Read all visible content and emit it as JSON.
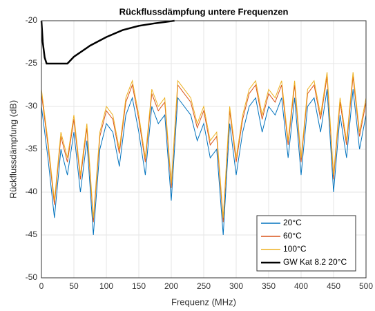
{
  "chart_data": {
    "type": "line",
    "title": "Rückflussdämpfung untere Frequenzen",
    "xlabel": "Frequenz (MHz)",
    "ylabel": "Rückflussdämpfung (dB)",
    "xlim": [
      0,
      500
    ],
    "xticks": [
      0,
      50,
      100,
      150,
      200,
      250,
      300,
      350,
      400,
      450,
      500
    ],
    "ylim": [
      -50,
      -20
    ],
    "yticks": [
      -20,
      -25,
      -30,
      -35,
      -40,
      -45,
      -50
    ],
    "grid": true,
    "legend": "lower right",
    "series": [
      {
        "name": "20°C",
        "color": "#0072BD",
        "x": [
          0,
          10,
          20,
          30,
          40,
          50,
          60,
          70,
          80,
          90,
          100,
          110,
          120,
          130,
          140,
          150,
          160,
          170,
          180,
          190,
          200,
          210,
          220,
          230,
          240,
          250,
          260,
          270,
          280,
          290,
          300,
          310,
          320,
          330,
          340,
          350,
          360,
          370,
          380,
          390,
          400,
          410,
          420,
          430,
          440,
          450,
          460,
          470,
          480,
          490,
          500
        ],
        "values": [
          -30,
          -36,
          -43,
          -35,
          -38,
          -33,
          -40,
          -34,
          -45,
          -35,
          -32,
          -33,
          -37,
          -31,
          -29,
          -33,
          -38,
          -30,
          -32,
          -31,
          -41,
          -29,
          -30,
          -31,
          -34,
          -32,
          -36,
          -35,
          -45,
          -32,
          -38,
          -33,
          -30,
          -29,
          -33,
          -30,
          -31,
          -29,
          -36,
          -29,
          -38,
          -30,
          -29,
          -33,
          -28,
          -40,
          -31,
          -36,
          -28,
          -35,
          -31
        ]
      },
      {
        "name": "60°C",
        "color": "#D95319",
        "x": [
          0,
          10,
          20,
          30,
          40,
          50,
          60,
          70,
          80,
          90,
          100,
          110,
          120,
          130,
          140,
          150,
          160,
          170,
          180,
          190,
          200,
          210,
          220,
          230,
          240,
          250,
          260,
          270,
          280,
          290,
          300,
          310,
          320,
          330,
          340,
          350,
          360,
          370,
          380,
          390,
          400,
          410,
          420,
          430,
          440,
          450,
          460,
          470,
          480,
          490,
          500
        ],
        "values": [
          -28.5,
          -34.5,
          -41.5,
          -33.5,
          -36.5,
          -31.5,
          -38.5,
          -32.5,
          -43.5,
          -33.5,
          -30.5,
          -31.5,
          -35.5,
          -29.5,
          -27.5,
          -31.5,
          -36.5,
          -28.5,
          -30.5,
          -29.5,
          -39.5,
          -27.5,
          -28.5,
          -29.5,
          -32.5,
          -30.5,
          -34.5,
          -33.5,
          -43.5,
          -30.5,
          -36.5,
          -31.5,
          -28.5,
          -27.5,
          -31.5,
          -28.5,
          -29.5,
          -27.5,
          -34.5,
          -27.5,
          -36.5,
          -28.5,
          -27.5,
          -31.5,
          -26.5,
          -38.5,
          -29.5,
          -34.5,
          -26.5,
          -33.5,
          -29.5
        ]
      },
      {
        "name": "100°C",
        "color": "#EDB120",
        "x": [
          0,
          10,
          20,
          30,
          40,
          50,
          60,
          70,
          80,
          90,
          100,
          110,
          120,
          130,
          140,
          150,
          160,
          170,
          180,
          190,
          200,
          210,
          220,
          230,
          240,
          250,
          260,
          270,
          280,
          290,
          300,
          310,
          320,
          330,
          340,
          350,
          360,
          370,
          380,
          390,
          400,
          410,
          420,
          430,
          440,
          450,
          460,
          470,
          480,
          490,
          500
        ],
        "values": [
          -28,
          -34,
          -41,
          -33,
          -36,
          -31,
          -38,
          -32,
          -43,
          -33,
          -30,
          -31,
          -35,
          -29,
          -27,
          -31,
          -36,
          -28,
          -30,
          -29,
          -39,
          -27,
          -28,
          -29,
          -32,
          -30,
          -34,
          -33,
          -43,
          -30,
          -36,
          -31,
          -28,
          -27,
          -31,
          -28,
          -29,
          -27,
          -34,
          -27,
          -36,
          -28,
          -27,
          -31,
          -26,
          -38,
          -29,
          -34,
          -26,
          -33,
          -29
        ]
      },
      {
        "name": "GW Kat 8.2 20°C",
        "color": "#000000",
        "x": [
          0,
          2,
          5,
          8,
          10,
          20,
          30,
          40,
          50,
          75,
          100,
          125,
          150,
          175,
          205
        ],
        "values": [
          -20,
          -22.5,
          -24.3,
          -25,
          -25,
          -25,
          -25,
          -25,
          -24.2,
          -22.9,
          -21.9,
          -21.1,
          -20.6,
          -20.3,
          -20
        ]
      }
    ]
  }
}
